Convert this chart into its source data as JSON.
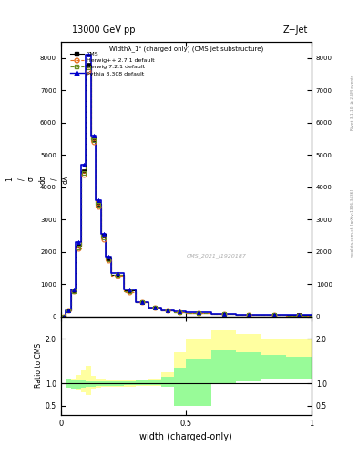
{
  "title_top": "13000 GeV pp",
  "title_right": "Z+Jet",
  "plot_title": "Widthλ_1¹ (charged only) (CMS jet substructure)",
  "xlabel": "width (charged-only)",
  "ylabel_ratio": "Ratio to CMS",
  "watermark": "CMS_2021_I1920187",
  "rivet_label": "Rivet 3.1.10, ≥ 2.6M events",
  "arxiv_label": "mcplots.cern.ch [arXiv:1306.3436]",
  "xlim": [
    0.0,
    1.0
  ],
  "ylim_main": [
    0,
    8500
  ],
  "ylim_ratio": [
    0.3,
    2.5
  ],
  "ratio_yticks": [
    0.5,
    1.0,
    2.0
  ],
  "main_yticks": [
    0,
    1000,
    2000,
    3000,
    4000,
    5000,
    6000,
    7000,
    8000
  ],
  "cms_color": "#000000",
  "herwig_pp_color": "#E87020",
  "herwig72_color": "#6B8E23",
  "pythia_color": "#0000CC",
  "yellow_fill": "#FFFFA0",
  "green_fill": "#98FB98",
  "bin_edges": [
    0.0,
    0.02,
    0.04,
    0.06,
    0.08,
    0.1,
    0.12,
    0.14,
    0.16,
    0.18,
    0.2,
    0.25,
    0.3,
    0.35,
    0.4,
    0.45,
    0.5,
    0.6,
    0.7,
    0.8,
    0.9,
    1.0
  ],
  "cms_values": [
    0,
    200,
    800,
    2200,
    4500,
    7800,
    5500,
    3500,
    2500,
    1800,
    1300,
    800,
    450,
    280,
    190,
    150,
    120,
    80,
    60,
    50,
    40
  ],
  "herwig_pp_values": [
    0,
    200,
    780,
    2100,
    4400,
    7600,
    5400,
    3400,
    2400,
    1750,
    1260,
    770,
    440,
    270,
    185,
    145,
    115,
    78,
    58,
    48,
    38
  ],
  "herwig72_values": [
    0,
    200,
    790,
    2150,
    4450,
    7700,
    5450,
    3450,
    2450,
    1770,
    1280,
    785,
    445,
    275,
    188,
    148,
    118,
    79,
    59,
    49,
    39
  ],
  "pythia_values": [
    0,
    200,
    850,
    2300,
    4700,
    8100,
    5600,
    3600,
    2550,
    1850,
    1350,
    830,
    460,
    290,
    195,
    155,
    125,
    83,
    62,
    52,
    42
  ],
  "ratio_herwig_pp_lo": [
    1.0,
    0.95,
    0.9,
    0.85,
    0.8,
    0.75,
    0.88,
    0.9,
    0.92,
    0.93,
    0.93,
    0.93,
    0.94,
    0.95,
    0.95,
    1.1,
    1.2,
    1.4,
    1.4,
    1.4,
    1.4
  ],
  "ratio_herwig_pp_hi": [
    1.0,
    1.05,
    1.1,
    1.2,
    1.3,
    1.4,
    1.18,
    1.12,
    1.1,
    1.08,
    1.08,
    1.08,
    1.08,
    1.1,
    1.25,
    1.7,
    2.0,
    2.2,
    2.1,
    2.0,
    2.0
  ],
  "ratio_herwig72_lo": [
    1.0,
    0.9,
    0.88,
    0.88,
    0.9,
    0.92,
    0.93,
    0.94,
    0.95,
    0.95,
    0.95,
    0.96,
    0.96,
    0.97,
    0.93,
    0.5,
    0.5,
    1.0,
    1.05,
    1.1,
    1.1
  ],
  "ratio_herwig72_hi": [
    1.0,
    1.1,
    1.08,
    1.08,
    1.06,
    1.04,
    1.04,
    1.04,
    1.04,
    1.04,
    1.05,
    1.05,
    1.06,
    1.06,
    1.15,
    1.35,
    1.55,
    1.75,
    1.7,
    1.65,
    1.6
  ]
}
